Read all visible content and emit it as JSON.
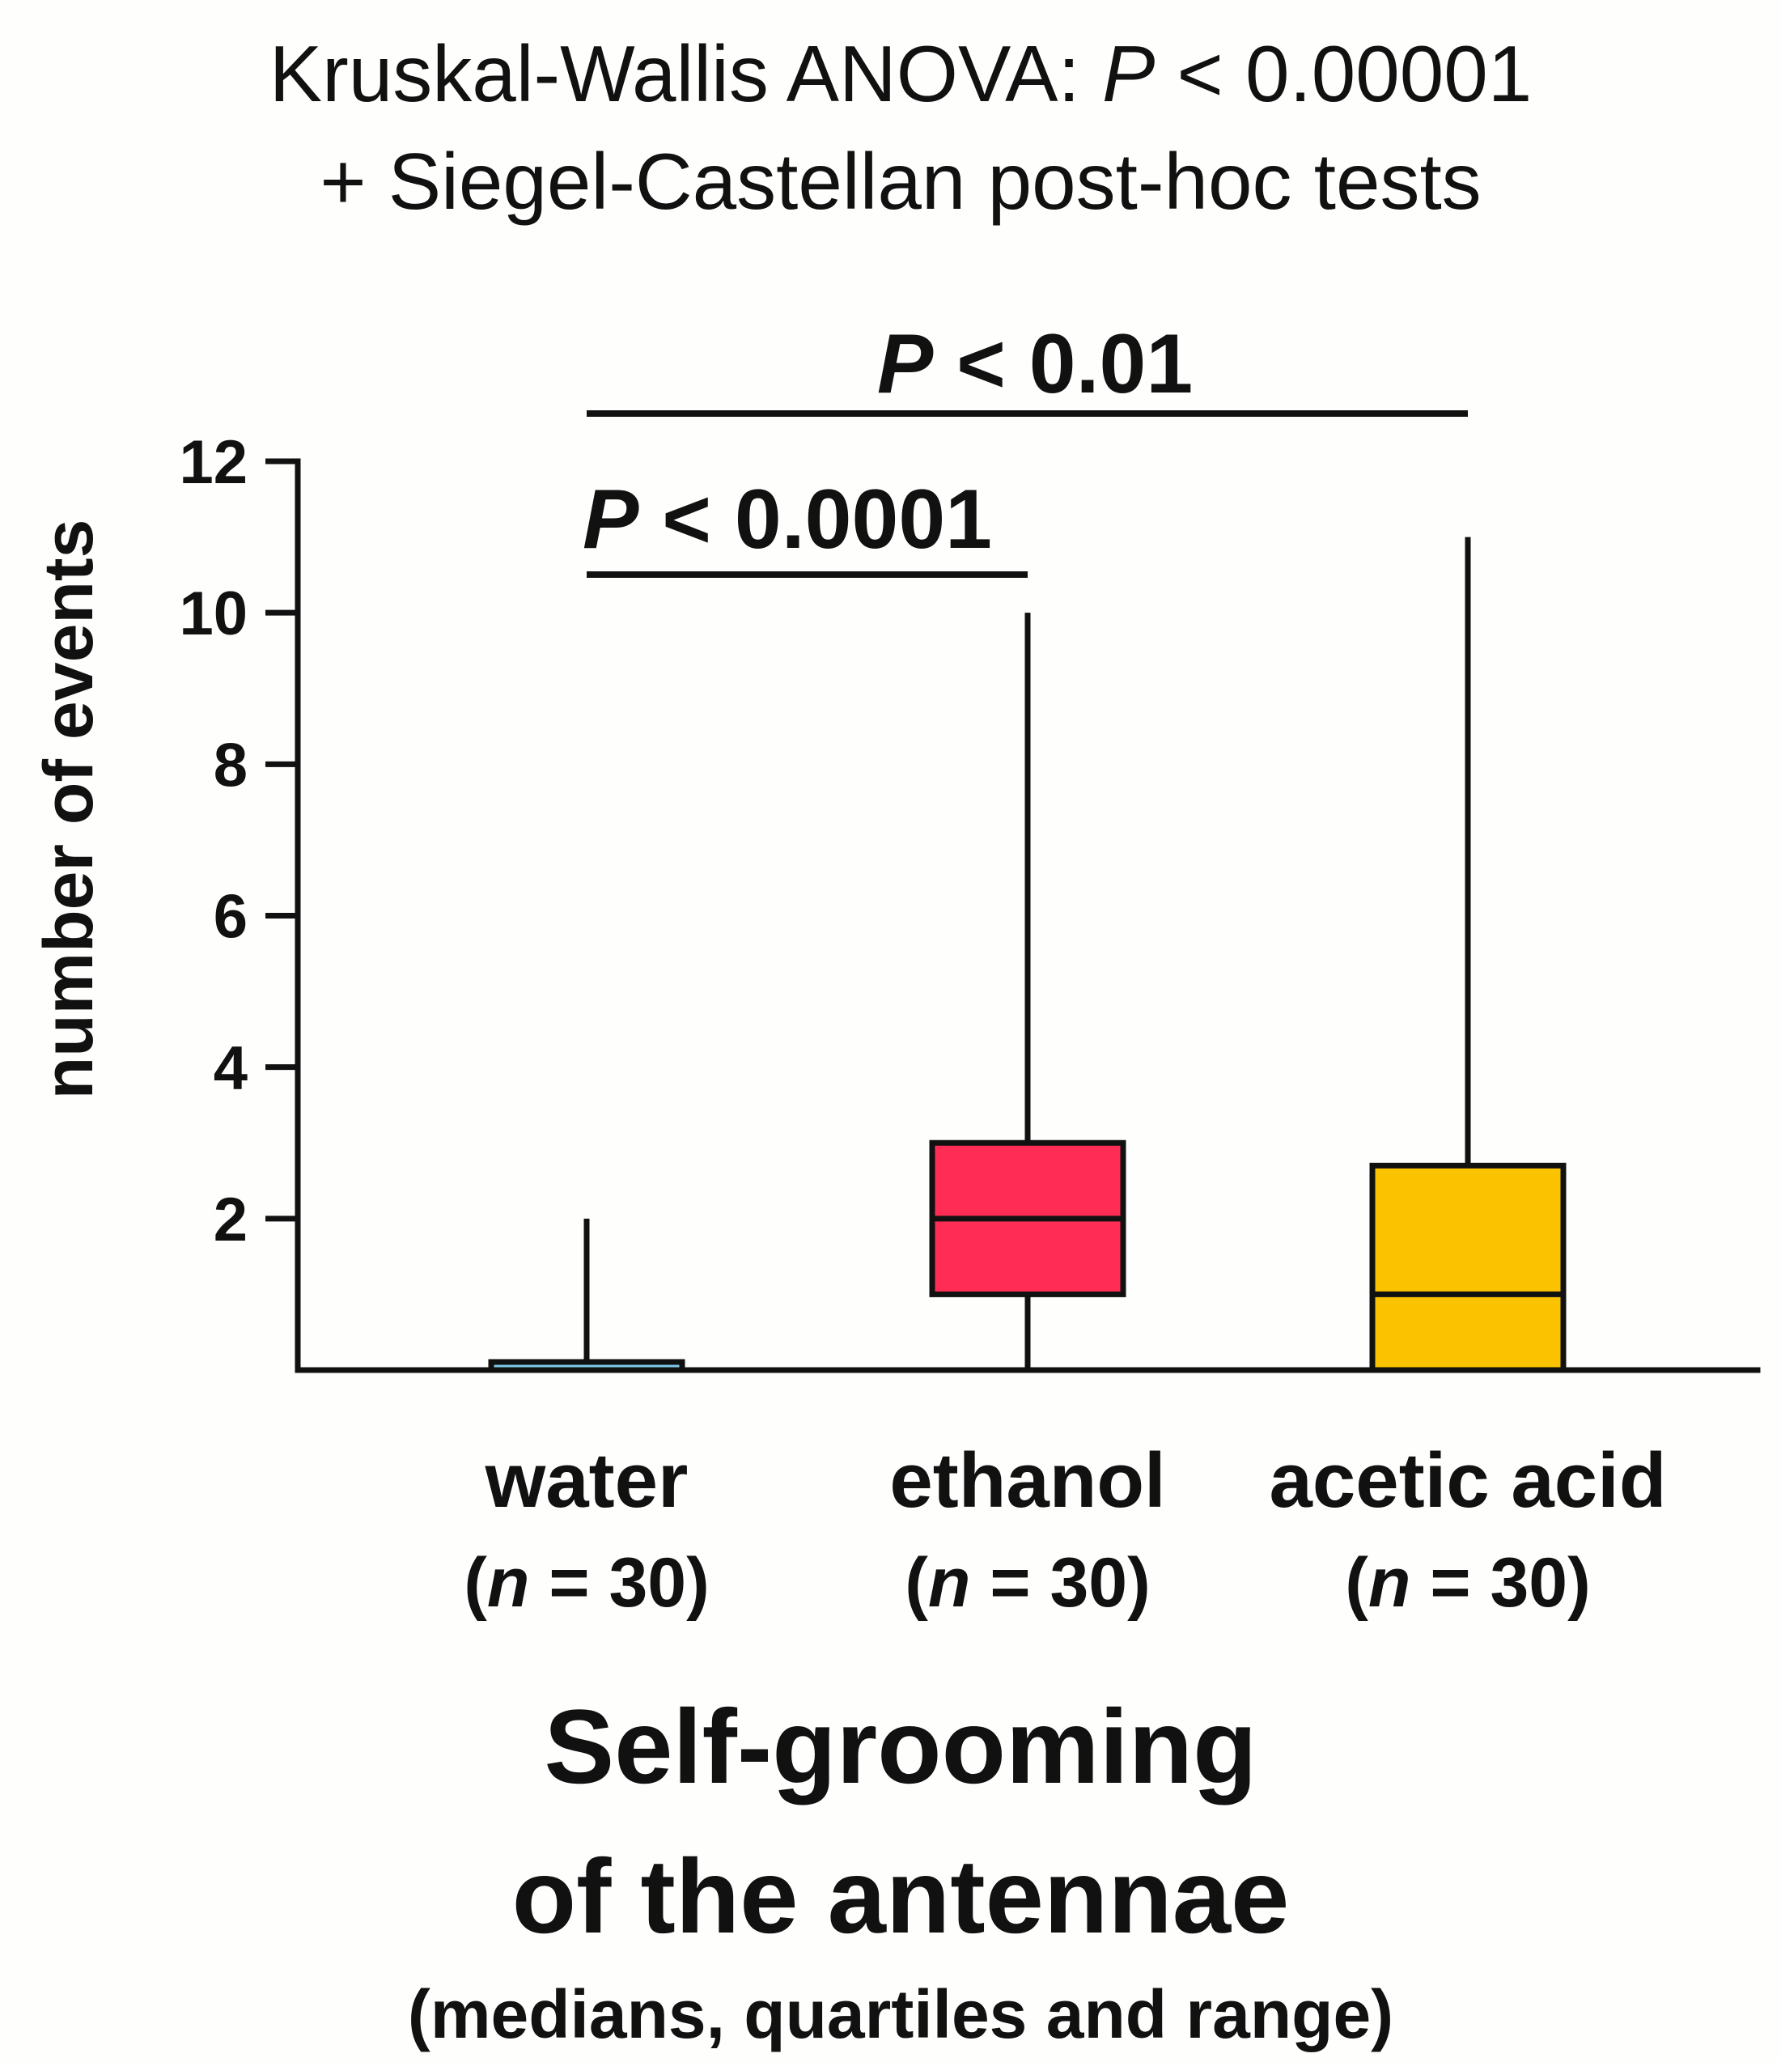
{
  "header": {
    "line1_prefix": "Kruskal-Wallis ANOVA: ",
    "line1_italic": "P",
    "line1_suffix": " < 0.00001",
    "line2": "+ Siegel-Castellan post-hoc tests"
  },
  "footer": {
    "title_line1": "Self-grooming",
    "title_line2": "of the antennae",
    "subtitle": "(medians, quartiles and range)"
  },
  "chart_data": {
    "type": "box",
    "ylabel": "number of events",
    "ylim": [
      0,
      12
    ],
    "yticks": [
      2,
      4,
      6,
      8,
      10,
      12
    ],
    "grid": false,
    "categories": [
      "water",
      "ethanol",
      "acetic acid"
    ],
    "n_labels": [
      {
        "open": "(",
        "italic": "n",
        "rest": " = 30)"
      },
      {
        "open": "(",
        "italic": "n",
        "rest": " = 30)"
      },
      {
        "open": "(",
        "italic": "n",
        "rest": " = 30)"
      }
    ],
    "boxes": [
      {
        "category": "water",
        "min": 0,
        "q1": 0,
        "median": 0,
        "q3": 0.1,
        "max": 2,
        "color": "#7ecbe8"
      },
      {
        "category": "ethanol",
        "min": 0,
        "q1": 1,
        "median": 2,
        "q3": 3,
        "max": 10,
        "color": "#ff2d55"
      },
      {
        "category": "acetic acid",
        "min": 0,
        "q1": 0,
        "median": 1,
        "q3": 2.7,
        "max": 11,
        "color": "#fbc200"
      }
    ],
    "significance": [
      {
        "from": "water",
        "to": "ethanol",
        "italic": "P",
        "text": " < 0.0001"
      },
      {
        "from": "water",
        "to": "acetic acid",
        "italic": "P",
        "text": " < 0.01"
      }
    ]
  }
}
